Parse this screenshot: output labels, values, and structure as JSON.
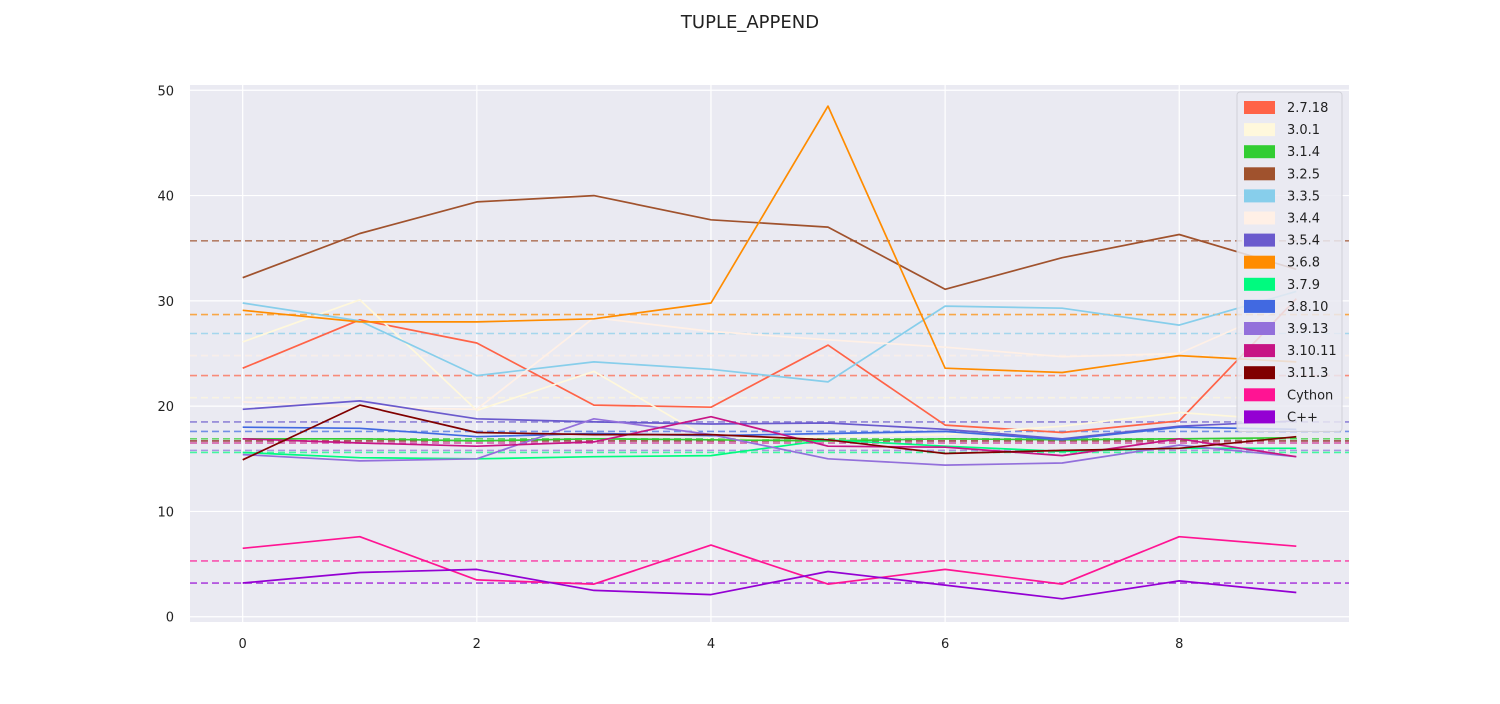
{
  "chart_data": {
    "type": "line",
    "title": "TUPLE_APPEND",
    "xlabel": "",
    "ylabel": "",
    "xlim": [
      -0.45,
      9.45
    ],
    "ylim": [
      -0.5,
      50.5
    ],
    "xticks": [
      0,
      2,
      4,
      6,
      8
    ],
    "yticks": [
      0,
      10,
      20,
      30,
      40,
      50
    ],
    "grid": true,
    "legend": "top-right",
    "background": "#eaeaf2",
    "x": [
      0,
      1,
      2,
      3,
      4,
      5,
      6,
      7,
      8,
      9
    ],
    "series": [
      {
        "name": "2.7.18",
        "color": "#ff6347",
        "mean": 22.9,
        "values": [
          23.6,
          28.2,
          26.0,
          20.1,
          19.9,
          25.8,
          18.2,
          17.5,
          18.6,
          30.2
        ]
      },
      {
        "name": "3.0.1",
        "color": "#fff8dc",
        "mean": 20.8,
        "values": [
          26.1,
          30.1,
          19.6,
          23.3,
          16.8,
          17.1,
          17.3,
          18.1,
          19.4,
          18.6
        ]
      },
      {
        "name": "3.1.4",
        "color": "#32cd32",
        "mean": 16.9,
        "values": [
          16.9,
          16.9,
          16.7,
          16.9,
          16.8,
          16.7,
          16.9,
          16.8,
          16.9,
          17.0
        ]
      },
      {
        "name": "3.2.5",
        "color": "#a0522d",
        "mean": 35.7,
        "values": [
          32.2,
          36.4,
          39.4,
          40.0,
          37.7,
          37.0,
          31.1,
          34.1,
          36.3,
          33.0
        ]
      },
      {
        "name": "3.3.5",
        "color": "#87ceeb",
        "mean": 26.9,
        "values": [
          29.8,
          28.1,
          22.9,
          24.2,
          23.5,
          22.3,
          29.5,
          29.3,
          27.7,
          30.9
        ]
      },
      {
        "name": "3.4.4",
        "color": "#fff0e6",
        "mean": 24.8,
        "values": [
          20.4,
          19.9,
          19.7,
          28.4,
          27.1,
          26.3,
          25.6,
          24.7,
          25.0,
          29.9
        ]
      },
      {
        "name": "3.5.4",
        "color": "#6a5acd",
        "mean": 18.5,
        "values": [
          19.7,
          20.5,
          18.8,
          18.5,
          18.3,
          18.4,
          17.8,
          16.9,
          18.1,
          18.6
        ]
      },
      {
        "name": "3.6.8",
        "color": "#ff8c00",
        "mean": 28.7,
        "values": [
          29.1,
          28.0,
          28.0,
          28.3,
          29.8,
          48.5,
          23.6,
          23.2,
          24.8,
          24.2
        ]
      },
      {
        "name": "3.7.9",
        "color": "#00fa7f",
        "mean": 15.6,
        "values": [
          15.6,
          15.1,
          15.0,
          15.2,
          15.3,
          16.8,
          16.2,
          15.7,
          16.0,
          16.0
        ]
      },
      {
        "name": "3.8.10",
        "color": "#4169e1",
        "mean": 17.6,
        "values": [
          18.0,
          17.9,
          17.1,
          17.4,
          17.2,
          17.4,
          17.6,
          16.8,
          18.0,
          17.8
        ]
      },
      {
        "name": "3.9.13",
        "color": "#9370db",
        "mean": 15.8,
        "values": [
          15.4,
          14.8,
          15.0,
          18.8,
          17.3,
          15.0,
          14.4,
          14.6,
          16.3,
          15.2
        ]
      },
      {
        "name": "3.10.11",
        "color": "#c71585",
        "mean": 16.5,
        "values": [
          16.9,
          16.5,
          16.2,
          16.6,
          19.0,
          16.2,
          16.1,
          15.3,
          16.9,
          15.2
        ]
      },
      {
        "name": "3.11.3",
        "color": "#800000",
        "mean": 16.7,
        "values": [
          14.9,
          20.1,
          17.5,
          17.3,
          17.3,
          16.8,
          15.5,
          15.8,
          16.0,
          17.1
        ]
      },
      {
        "name": "Cython",
        "color": "#ff1493",
        "mean": 5.3,
        "values": [
          6.5,
          7.6,
          3.5,
          3.1,
          6.8,
          3.1,
          4.5,
          3.1,
          7.6,
          6.7
        ]
      },
      {
        "name": "C++",
        "color": "#9400d3",
        "mean": 3.2,
        "values": [
          3.2,
          4.2,
          4.5,
          2.5,
          2.1,
          4.3,
          3.0,
          1.7,
          3.4,
          2.3
        ]
      }
    ]
  }
}
